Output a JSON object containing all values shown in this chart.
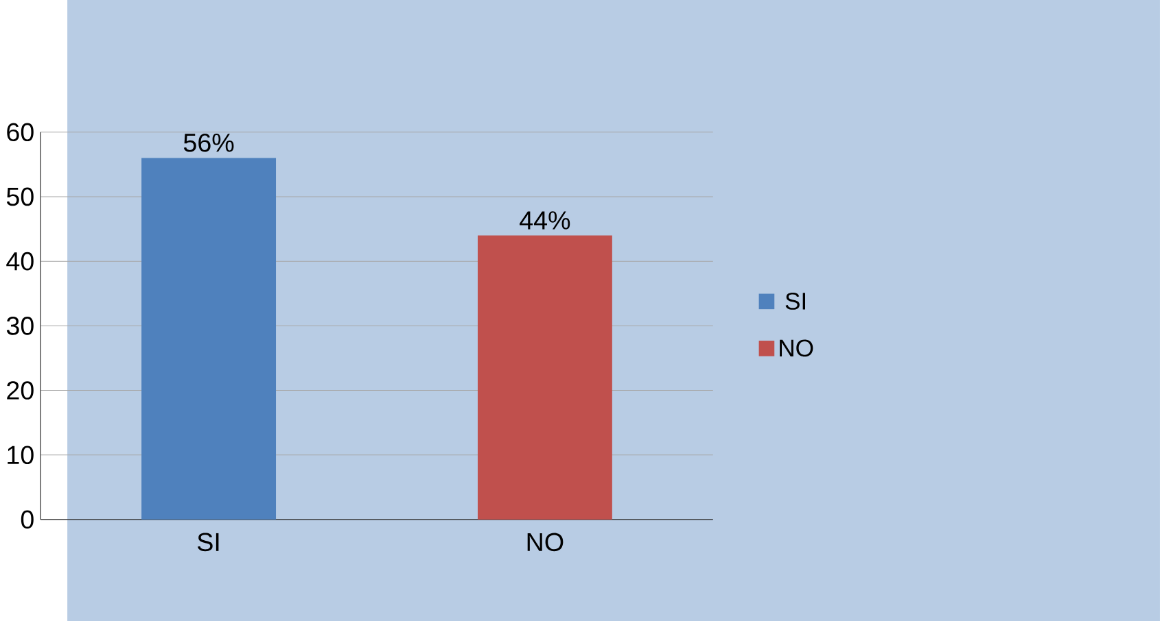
{
  "chart_data": {
    "type": "bar",
    "categories": [
      "SI",
      "NO"
    ],
    "series": [
      {
        "name": "SI",
        "color": "#4f81bd",
        "values": [
          56,
          null
        ],
        "value_labels": [
          "56%",
          null
        ]
      },
      {
        "name": "NO",
        "color": "#c0504d",
        "values": [
          null,
          44
        ],
        "value_labels": [
          null,
          "44%"
        ]
      }
    ],
    "ylim": [
      0,
      60
    ],
    "yticks": [
      0,
      10,
      20,
      30,
      40,
      50,
      60
    ],
    "grid": "y",
    "legend": "right"
  }
}
